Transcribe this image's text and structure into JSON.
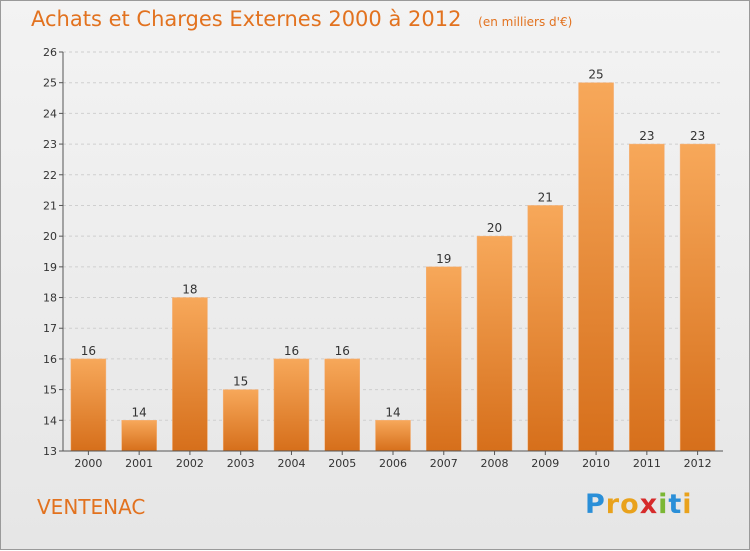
{
  "header": {
    "title": "Achats et Charges Externes 2000 à 2012",
    "unit": "(en milliers d'€)"
  },
  "footer": {
    "commune": "VENTENAC",
    "logo_text": "Proxiti"
  },
  "colors": {
    "bar_light": "#f7a85a",
    "bar_dark": "#d8701c",
    "title": "#e2721f"
  },
  "chart_data": {
    "type": "bar",
    "title": "Achats et Charges Externes 2000 à 2012",
    "subtitle": "(en milliers d'€)",
    "categories": [
      "2000",
      "2001",
      "2002",
      "2003",
      "2004",
      "2005",
      "2006",
      "2007",
      "2008",
      "2009",
      "2010",
      "2011",
      "2012"
    ],
    "values": [
      16,
      14,
      18,
      15,
      16,
      16,
      14,
      19,
      20,
      21,
      25,
      23,
      23
    ],
    "ylim": [
      13,
      26
    ],
    "yticks": [
      13,
      14,
      15,
      16,
      17,
      18,
      19,
      20,
      21,
      22,
      23,
      24,
      25,
      26
    ],
    "grid": true,
    "legend": "none"
  }
}
